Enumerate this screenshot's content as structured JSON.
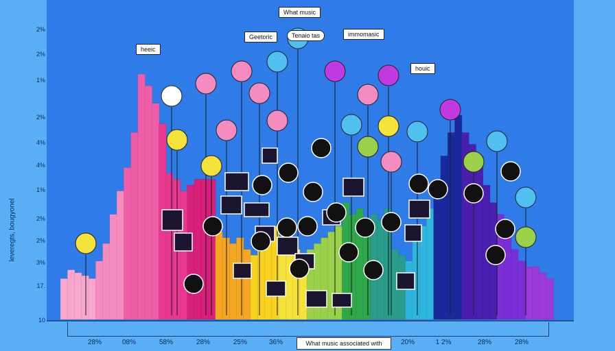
{
  "chart_data": {
    "type": "bar",
    "title": "What music",
    "xlabel": "What music associated with",
    "ylabel": "leveregts, bougyonel",
    "ytick_labels": [
      "2%",
      "2%",
      "1%",
      "2%",
      "4%",
      "4%",
      "1%",
      "2%",
      "2%",
      "3%",
      "17.",
      "10"
    ],
    "xtick_labels": [
      "28%",
      "08%",
      "58%",
      "28%",
      "25%",
      "36%",
      "20%",
      "1 2%",
      "28%",
      "28%"
    ],
    "callouts": [
      "heeic",
      "Geetoric",
      "Tenaio tas",
      "immomasic",
      "houic",
      "What music"
    ],
    "ylim": [
      0,
      100
    ],
    "values": [
      14,
      17,
      16,
      15,
      14,
      20,
      26,
      36,
      44,
      52,
      64,
      84,
      80,
      74,
      67,
      50,
      48,
      44,
      46,
      48,
      48,
      48,
      30,
      28,
      26,
      28,
      24,
      22,
      28,
      30,
      32,
      28,
      22,
      24,
      22,
      24,
      26,
      28,
      30,
      32,
      40,
      36,
      38,
      30,
      36,
      34,
      38,
      24,
      22,
      20,
      28,
      32,
      38,
      46,
      56,
      64,
      70,
      64,
      60,
      56,
      46,
      40,
      36,
      30,
      24,
      20,
      18,
      18,
      16,
      14
    ],
    "colors": [
      "#f7a8cc",
      "#f58cc0",
      "#ee5fa8",
      "#e8388f",
      "#d81f7a",
      "#f5a623",
      "#f7d21e",
      "#f5e23a",
      "#9bd14a",
      "#2fa84a",
      "#2a9c8c",
      "#2fb6e0",
      "#1a2a9c",
      "#4a1fb0",
      "#7a2fd6",
      "#9b3ad8"
    ]
  }
}
